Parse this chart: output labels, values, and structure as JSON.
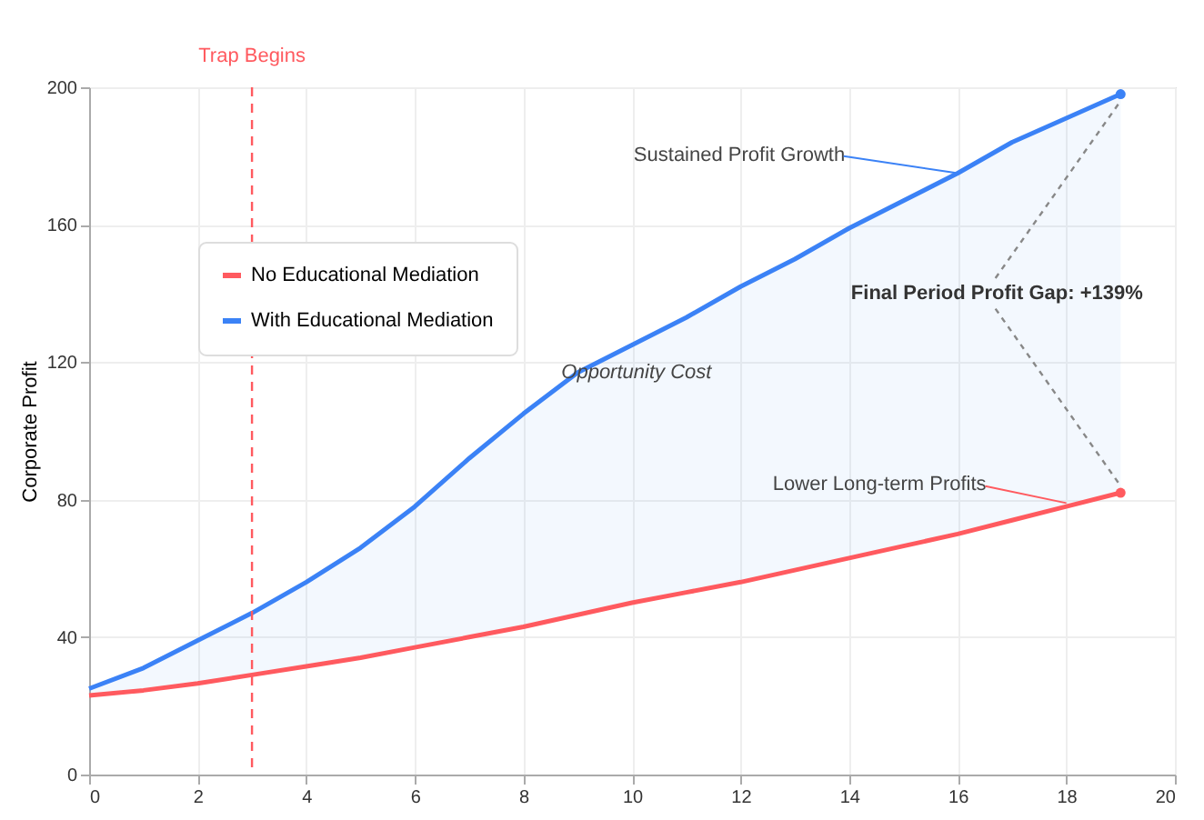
{
  "chart_data": {
    "type": "line",
    "ylabel": "Corporate Profit",
    "x": [
      0,
      1,
      2,
      3,
      4,
      5,
      6,
      7,
      8,
      9,
      10,
      11,
      12,
      13,
      14,
      15,
      16,
      17,
      18,
      19
    ],
    "series": [
      {
        "name": "No Educational Mediation",
        "color": "#ff5a5f",
        "values": [
          23,
          24.5,
          26.5,
          29,
          31.5,
          34,
          37,
          40,
          43,
          46.5,
          50,
          53,
          56,
          59.5,
          63,
          66.5,
          70,
          74,
          78,
          82
        ]
      },
      {
        "name": "With Educational Mediation",
        "color": "#3b82f6",
        "values": [
          25,
          31,
          39,
          47,
          56,
          66,
          78,
          92,
          105,
          117,
          125,
          133,
          142,
          150,
          159,
          167,
          175,
          184,
          191,
          198
        ],
        "lower": [
          23,
          24.5,
          26.5,
          29,
          31.5,
          34,
          37,
          40,
          43,
          46.5,
          50,
          53,
          56,
          59.5,
          63,
          66.5,
          70,
          74,
          78,
          82
        ],
        "upper": [
          25,
          31,
          39,
          47,
          56,
          66,
          78,
          92,
          105,
          117,
          125,
          133,
          142,
          150,
          159,
          167,
          175,
          184,
          191,
          198
        ]
      }
    ],
    "xlim": [
      0,
      20
    ],
    "xticks": [
      0,
      2,
      4,
      6,
      8,
      10,
      12,
      14,
      16,
      18,
      20
    ],
    "ylim": [
      0,
      200
    ],
    "yticks": [
      0,
      40,
      80,
      120,
      160,
      200
    ],
    "grid": true,
    "legend": "top left",
    "line_style": "solid",
    "ref_lines": [
      {
        "axis": "x",
        "value": 3,
        "label": "Trap Begins",
        "color": "#ff5a5f",
        "line_style": "dashed"
      }
    ],
    "annotations": [
      {
        "text": "Sustained Profit Growth",
        "x": 16,
        "y": 175
      },
      {
        "text": "Lower Long-term Profits",
        "x": 18,
        "y": 79
      },
      "Opportunity Cost",
      {
        "text": "Final Period Profit Gap: +139%",
        "x": 19,
        "y": 198
      }
    ]
  }
}
